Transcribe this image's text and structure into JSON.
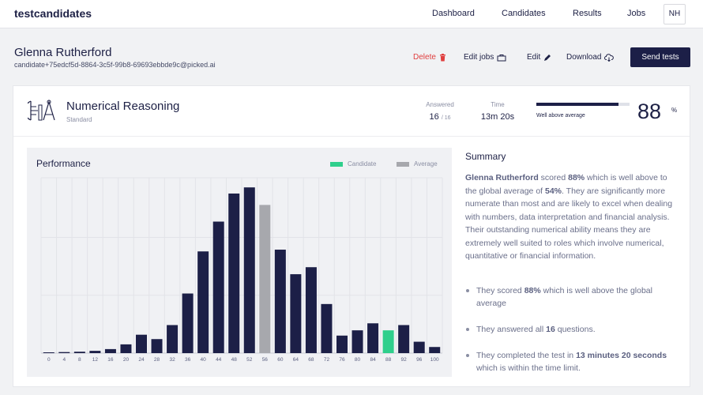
{
  "brand": "testcandidates",
  "nav": [
    "Dashboard",
    "Candidates",
    "Results",
    "Jobs"
  ],
  "user_initials": "NH",
  "candidate": {
    "name": "Glenna Rutherford",
    "email": "candidate+75edcf5d-8864-3c5f-99b8-69693ebbde9c@picked.ai"
  },
  "actions": {
    "delete": "Delete",
    "edit_jobs": "Edit jobs",
    "edit": "Edit",
    "download": "Download",
    "send_tests": "Send tests"
  },
  "test": {
    "title": "Numerical Reasoning",
    "level": "Standard",
    "answered_label": "Answered",
    "answered": "16",
    "answered_total": "/ 16",
    "time_label": "Time",
    "time": "13m 20s",
    "score_caption": "Well above average",
    "score": "88",
    "score_fraction": 0.88,
    "percent_sign": "%"
  },
  "performance": {
    "title": "Performance",
    "legend_candidate": "Candidate",
    "legend_average": "Average"
  },
  "chart_data": {
    "type": "bar",
    "categories": [
      "0",
      "4",
      "8",
      "12",
      "16",
      "20",
      "24",
      "28",
      "32",
      "36",
      "40",
      "44",
      "48",
      "52",
      "56",
      "60",
      "64",
      "68",
      "72",
      "76",
      "80",
      "84",
      "88",
      "92",
      "96",
      "100"
    ],
    "values": [
      0.3,
      0.6,
      0.8,
      1.3,
      2.3,
      5.0,
      10.5,
      8.0,
      16.0,
      34.0,
      58.0,
      75.0,
      91.0,
      94.5,
      84.5,
      59.0,
      45.0,
      49.0,
      28.0,
      10.0,
      13.0,
      17.0,
      13.0,
      16.0,
      6.5,
      3.5
    ],
    "candidate_category": "88",
    "average_category": "56",
    "colors": {
      "bar": "#1c1f47",
      "candidate": "#2fcf8c",
      "average": "#a7a8ad"
    },
    "ylim": [
      0,
      100
    ],
    "grid": true,
    "legend": "top-right"
  },
  "summary": {
    "title": "Summary",
    "p_name": "Glenna Rutherford",
    "p_t1": " scored ",
    "p_score": "88%",
    "p_t2": " which is well above to the global average of ",
    "p_avg": "54%",
    "p_t3": ". They are significantly more numerate than most and are likely to excel when dealing with numbers, data interpretation and financial analysis. Their outstanding numerical ability means they are extremely well suited to roles which involve numerical, quantitative or financial information.",
    "b1_pre": "They scored ",
    "b1_bold": "88%",
    "b1_post": " which is well above the global average",
    "b2_pre": "They answered all ",
    "b2_bold": "16",
    "b2_post": " questions.",
    "b3_pre": "They completed the test in ",
    "b3_bold": "13 minutes 20 seconds",
    "b3_post": " which is within the time limit."
  }
}
